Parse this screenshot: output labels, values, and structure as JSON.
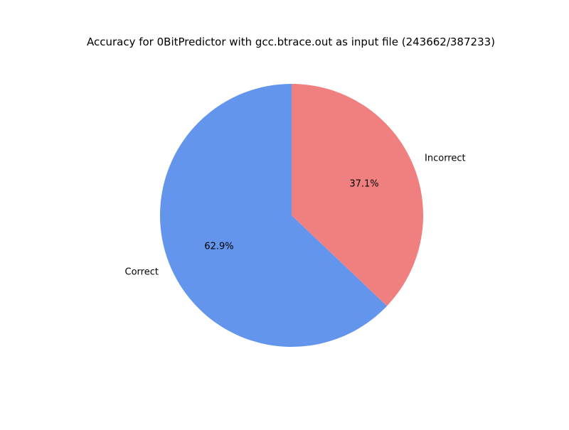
{
  "chart_data": {
    "type": "pie",
    "title": "Accuracy for 0BitPredictor with gcc.btrace.out as input file (243662/387233)",
    "slices": [
      {
        "label": "Correct",
        "value": 62.9,
        "pct_label": "62.9%",
        "color": "#6495ED"
      },
      {
        "label": "Incorrect",
        "value": 37.1,
        "pct_label": "37.1%",
        "color": "#F08080"
      }
    ],
    "start_angle_deg": 90,
    "direction": "counterclockwise",
    "legend": "none"
  }
}
